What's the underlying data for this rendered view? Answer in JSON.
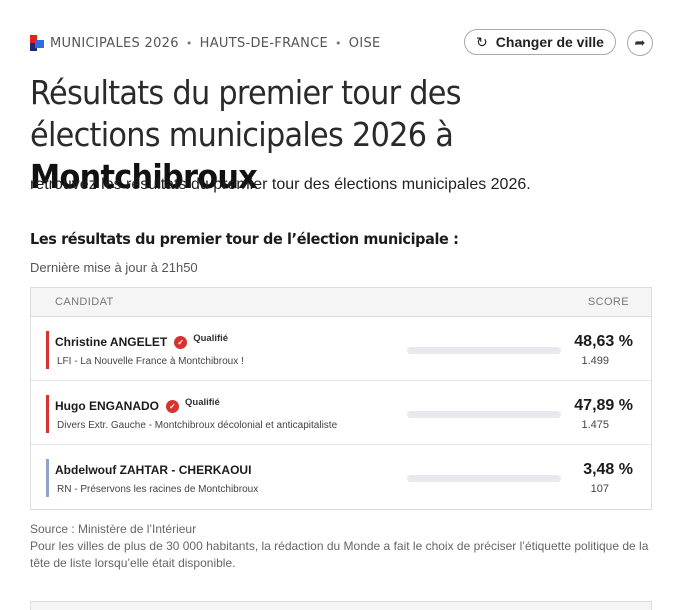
{
  "breadcrumb": {
    "items": [
      "MUNICIPALES 2026",
      "HAUTS-DE-FRANCE",
      "OISE"
    ],
    "separator": "•"
  },
  "header": {
    "change_city_label": "Changer de ville",
    "change_city_icon": "refresh-icon",
    "share_icon": "share-icon"
  },
  "title": {
    "prefix": "Résultats du premier tour des élections municipales 2026 à ",
    "city": "Montchibroux"
  },
  "subtitle": "retrouvez les résultats du premier tour des élections municipales 2026.",
  "section": {
    "heading": "Les résultats du premier tour de l’élection municipale :",
    "updated": "Dernière mise à jour à 21h50"
  },
  "table": {
    "col_candidate": "CANDIDAT",
    "col_score": "SCORE",
    "rows": [
      {
        "name": "Christine ANGELET",
        "qualified": "Qualifié",
        "list": "LFI - La Nouvelle France à Montchibroux !",
        "score": "48,63 %",
        "votes": "1.499",
        "pct": 48.63,
        "color": "#d6322f"
      },
      {
        "name": "Hugo ENGANADO",
        "qualified": "Qualifié",
        "list": "Divers Extr. Gauche - Montchibroux décolonial et anticapitaliste",
        "score": "47,89 %",
        "votes": "1.475",
        "pct": 47.89,
        "color": "#d6322f"
      },
      {
        "name": "Abdelwouf ZAHTAR - CHERKAOUI",
        "qualified": "",
        "list": "RN - Préservons les racines de Montchibroux",
        "score": "3,48 %",
        "votes": "107",
        "pct": 3.48,
        "color": "#2b4aa0",
        "accent": "#8aa6c8"
      }
    ]
  },
  "source": "Source : Ministère de l’Intérieur",
  "note": "Pour les villes de plus de 30 000 habitants, la rédaction du Monde a fait le choix de préciser l’étiquette politique de la tête de liste lorsqu’elle était disponible."
}
